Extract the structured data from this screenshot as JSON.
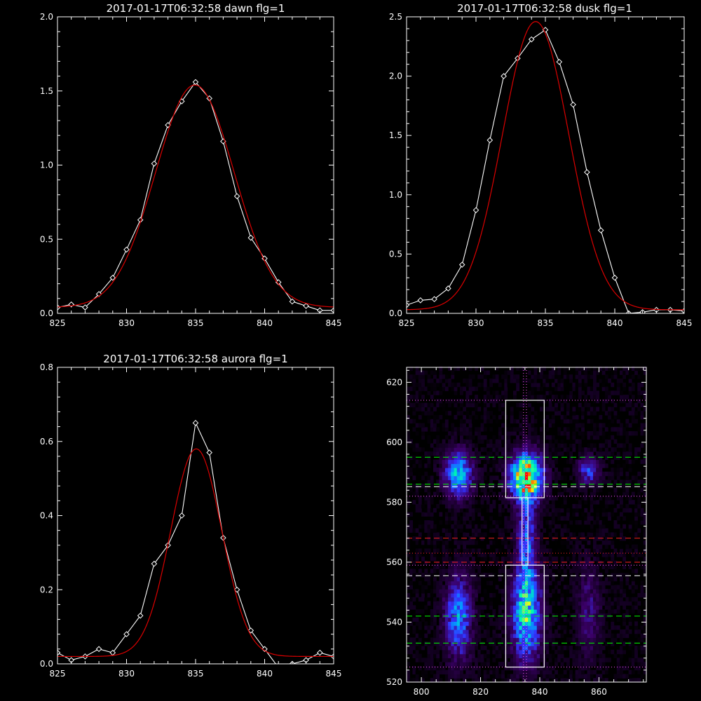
{
  "chart_data": [
    {
      "type": "line",
      "title": "2017-01-17T06:32:58 dawn flg=1",
      "xlim": [
        825,
        845
      ],
      "ylim": [
        0,
        2.0
      ],
      "xticks": [
        "825",
        "830",
        "835",
        "840",
        "845"
      ],
      "yticks": [
        "0.0",
        "0.5",
        "1.0",
        "1.5",
        "2.0"
      ],
      "series": [
        {
          "style": "data",
          "color": "#ffffff",
          "marker": "diamond",
          "x": [
            825,
            826,
            827,
            828,
            829,
            830,
            831,
            832,
            833,
            834,
            835,
            836,
            837,
            838,
            839,
            840,
            841,
            842,
            843,
            844,
            845
          ],
          "y": [
            0.04,
            0.06,
            0.04,
            0.13,
            0.24,
            0.43,
            0.63,
            1.01,
            1.27,
            1.43,
            1.56,
            1.45,
            1.16,
            0.79,
            0.51,
            0.37,
            0.21,
            0.08,
            0.05,
            0.02,
            0.02
          ]
        },
        {
          "style": "fit",
          "color": "#dd0000",
          "amp": 1.5,
          "mu": 834.95,
          "sigma": 2.85,
          "base": 0.04
        }
      ]
    },
    {
      "type": "line",
      "title": "2017-01-17T06:32:58 dusk flg=1",
      "xlim": [
        825,
        845
      ],
      "ylim": [
        0,
        2.5
      ],
      "xticks": [
        "825",
        "830",
        "835",
        "840",
        "845"
      ],
      "yticks": [
        "0.0",
        "0.5",
        "1.0",
        "1.5",
        "2.0",
        "2.5"
      ],
      "series": [
        {
          "style": "data",
          "color": "#ffffff",
          "marker": "diamond",
          "x": [
            825,
            826,
            827,
            828,
            829,
            830,
            831,
            832,
            833,
            834,
            835,
            836,
            837,
            838,
            839,
            840,
            841,
            842,
            843,
            844,
            845
          ],
          "y": [
            0.07,
            0.11,
            0.12,
            0.21,
            0.41,
            0.87,
            1.46,
            2.0,
            2.15,
            2.31,
            2.39,
            2.12,
            1.76,
            1.19,
            0.7,
            0.3,
            0.0,
            0.01,
            0.03,
            0.03,
            0.02
          ]
        },
        {
          "style": "fit",
          "color": "#dd0000",
          "amp": 2.43,
          "mu": 834.3,
          "sigma": 2.4,
          "base": 0.03
        }
      ]
    },
    {
      "type": "line",
      "title": "2017-01-17T06:32:58 aurora flg=1",
      "xlim": [
        825,
        845
      ],
      "ylim": [
        0,
        0.8
      ],
      "xticks": [
        "825",
        "830",
        "835",
        "840",
        "845"
      ],
      "yticks": [
        "0.0",
        "0.2",
        "0.4",
        "0.6",
        "0.8"
      ],
      "series": [
        {
          "style": "data",
          "color": "#ffffff",
          "marker": "diamond",
          "x": [
            825,
            826,
            827,
            828,
            829,
            830,
            831,
            832,
            833,
            834,
            835,
            836,
            837,
            838,
            839,
            840,
            841,
            842,
            843,
            844,
            845
          ],
          "y": [
            0.03,
            0.01,
            0.02,
            0.04,
            0.03,
            0.08,
            0.13,
            0.27,
            0.32,
            0.4,
            0.65,
            0.57,
            0.34,
            0.2,
            0.09,
            0.04,
            -0.01,
            0.0,
            0.01,
            0.03,
            0.02
          ]
        },
        {
          "style": "fit",
          "color": "#dd0000",
          "amp": 0.56,
          "mu": 835.05,
          "sigma": 1.85,
          "base": 0.02
        }
      ]
    },
    {
      "type": "heatmap",
      "title": "",
      "xlim": [
        795,
        876
      ],
      "ylim": [
        520,
        625
      ],
      "xticks": [
        "800",
        "820",
        "840",
        "860"
      ],
      "yticks": [
        "520",
        "540",
        "560",
        "580",
        "600",
        "620"
      ],
      "emission_blobs": [
        {
          "cx": 812,
          "cy": 589,
          "sx": 3.2,
          "sy": 5,
          "amp": 0.55
        },
        {
          "cx": 812,
          "cy": 541,
          "sx": 3.0,
          "sy": 9,
          "amp": 0.45
        },
        {
          "cx": 835,
          "cy": 588,
          "sx": 3.6,
          "sy": 5,
          "amp": 1.0
        },
        {
          "cx": 835,
          "cy": 542,
          "sx": 3.2,
          "sy": 10,
          "amp": 0.65
        },
        {
          "cx": 835,
          "cy": 568,
          "sx": 2.2,
          "sy": 12,
          "amp": 0.35
        },
        {
          "cx": 856,
          "cy": 590,
          "sx": 2.5,
          "sy": 3,
          "amp": 0.35
        },
        {
          "cx": 856,
          "cy": 543,
          "sx": 2.5,
          "sy": 10,
          "amp": 0.18
        }
      ],
      "boxes": [
        {
          "x0": 828.5,
          "x1": 841.5,
          "y0": 581.5,
          "y1": 614
        },
        {
          "x0": 828.5,
          "x1": 841.5,
          "y0": 525,
          "y1": 559
        },
        {
          "x0": 834,
          "x1": 836,
          "y0": 559,
          "y1": 581.5
        }
      ],
      "center_lines_x": [
        834.5,
        835.5
      ],
      "hlines": [
        {
          "y": 614,
          "color": "#ff55ff",
          "style": "dotted"
        },
        {
          "y": 595,
          "color": "#00ff00",
          "style": "dashed"
        },
        {
          "y": 586,
          "color": "#00ff00",
          "style": "dashed"
        },
        {
          "y": 585.2,
          "color": "#ffffff",
          "style": "dashed"
        },
        {
          "y": 582,
          "color": "#ff55ff",
          "style": "dotted"
        },
        {
          "y": 568,
          "color": "#ff2222",
          "style": "dashed"
        },
        {
          "y": 563,
          "color": "#ff2222",
          "style": "dotted"
        },
        {
          "y": 560,
          "color": "#ff2222",
          "style": "dashed"
        },
        {
          "y": 559,
          "color": "#ff55ff",
          "style": "dotted"
        },
        {
          "y": 555.5,
          "color": "#ffffff",
          "style": "dashed"
        },
        {
          "y": 542,
          "color": "#00ff00",
          "style": "dashed"
        },
        {
          "y": 533,
          "color": "#00ff00",
          "style": "dashed"
        },
        {
          "y": 525,
          "color": "#ff55ff",
          "style": "dotted"
        }
      ],
      "colormap": [
        "#000000",
        "#3a0066",
        "#3333ff",
        "#00a0ff",
        "#00ffaa",
        "#ffff00",
        "#ff0000"
      ]
    }
  ]
}
